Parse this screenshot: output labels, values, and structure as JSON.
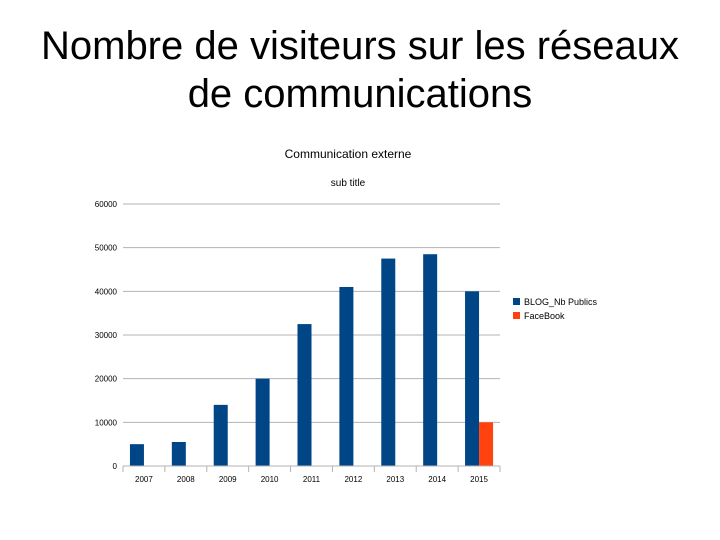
{
  "slide": {
    "title_line1": "Nombre de visiteurs sur les réseaux",
    "title_line2": "de communications"
  },
  "chart_data": {
    "type": "bar",
    "title": "Communication externe",
    "subtitle": "sub title",
    "xlabel": "",
    "ylabel": "",
    "categories": [
      "2007",
      "2008",
      "2009",
      "2010",
      "2011",
      "2012",
      "2013",
      "2014",
      "2015"
    ],
    "series": [
      {
        "name": "BLOG_Nb Publics",
        "color": "#004586",
        "values": [
          5000,
          5500,
          14000,
          20000,
          32500,
          41000,
          47500,
          48500,
          40000
        ]
      },
      {
        "name": "FaceBook",
        "color": "#ff420e",
        "values": [
          null,
          null,
          null,
          null,
          null,
          null,
          null,
          null,
          10000
        ]
      }
    ],
    "ylim": [
      0,
      60000
    ],
    "yticks": [
      "0",
      "10000",
      "20000",
      "30000",
      "40000",
      "50000",
      "60000"
    ],
    "grid": true,
    "legend": "right"
  }
}
